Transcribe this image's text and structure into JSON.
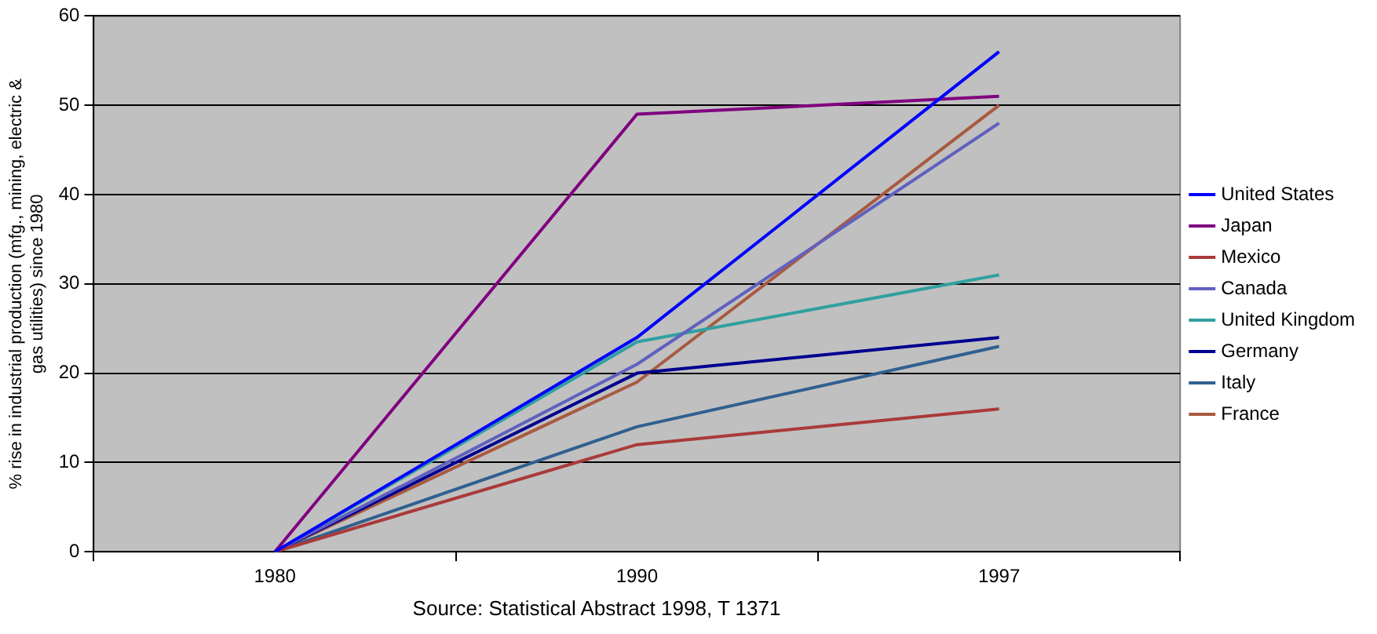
{
  "chart_data": {
    "type": "line",
    "ylabel": "% rise in industrial production (mfg., mining, electric &\ngas utilities) since 1980",
    "categories": [
      "1980",
      "1990",
      "1997"
    ],
    "series": [
      {
        "name": "United States",
        "color": "#0000ff",
        "values": [
          0,
          24,
          56
        ]
      },
      {
        "name": "Japan",
        "color": "#800080",
        "values": [
          0,
          49,
          51
        ]
      },
      {
        "name": "Mexico",
        "color": "#aa3a3a",
        "values": [
          0,
          12,
          16
        ]
      },
      {
        "name": "Canada",
        "color": "#6060c0",
        "values": [
          0,
          21,
          48
        ]
      },
      {
        "name": "United Kingdom",
        "color": "#30a0a0",
        "values": [
          0,
          23.5,
          31
        ]
      },
      {
        "name": "Germany",
        "color": "#000090",
        "values": [
          0,
          20,
          24
        ]
      },
      {
        "name": "Italy",
        "color": "#306090",
        "values": [
          0,
          14,
          23
        ]
      },
      {
        "name": "France",
        "color": "#a85a40",
        "values": [
          0,
          19,
          50
        ]
      }
    ],
    "ylim": [
      0,
      60
    ],
    "yticks": [
      0,
      10,
      20,
      30,
      40,
      50,
      60
    ],
    "grid": "y",
    "legend": "right",
    "marker": "none",
    "line_style": "solid",
    "annotations": [
      "Source: Statistical Abstract 1998, T 1371"
    ]
  }
}
